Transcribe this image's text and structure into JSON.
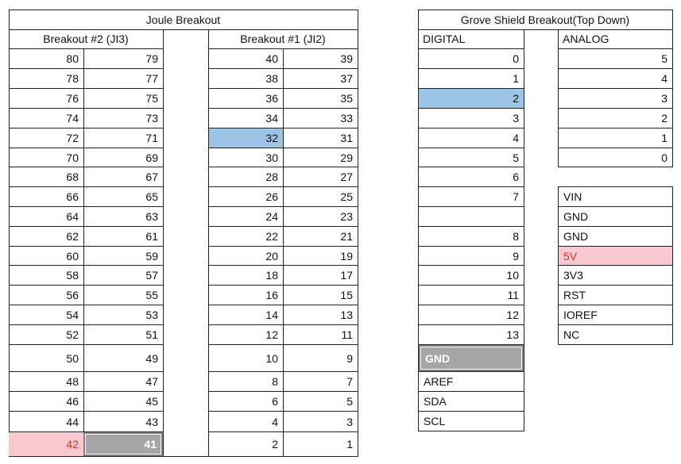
{
  "joule": {
    "title": "Joule Breakout",
    "b2_label": "Breakout #2 (JI3)",
    "b1_label": "Breakout #1 (JI2)",
    "rows": [
      [
        "80",
        "79",
        "40",
        "39"
      ],
      [
        "78",
        "77",
        "38",
        "37"
      ],
      [
        "76",
        "75",
        "36",
        "35"
      ],
      [
        "74",
        "73",
        "34",
        "33"
      ],
      [
        "72",
        "71",
        "32",
        "31"
      ],
      [
        "70",
        "69",
        "30",
        "29"
      ],
      [
        "68",
        "67",
        "28",
        "27"
      ],
      [
        "66",
        "65",
        "26",
        "25"
      ],
      [
        "64",
        "63",
        "24",
        "23"
      ],
      [
        "62",
        "61",
        "22",
        "21"
      ],
      [
        "60",
        "59",
        "20",
        "19"
      ],
      [
        "58",
        "57",
        "18",
        "17"
      ],
      [
        "56",
        "55",
        "16",
        "15"
      ],
      [
        "54",
        "53",
        "14",
        "13"
      ],
      [
        "52",
        "51",
        "12",
        "11"
      ],
      [
        "50",
        "49",
        "10",
        "9"
      ],
      [
        "48",
        "47",
        "8",
        "7"
      ],
      [
        "46",
        "45",
        "6",
        "5"
      ],
      [
        "44",
        "43",
        "4",
        "3"
      ],
      [
        "42",
        "41",
        "2",
        "1"
      ]
    ]
  },
  "grove": {
    "title": "Grove Shield Breakout(Top Down)",
    "digital_label": "DIGITAL",
    "analog_label": "ANALOG",
    "digital": [
      "0",
      "1",
      "2",
      "3",
      "4",
      "5",
      "6",
      "7",
      "",
      "8",
      "9",
      "10",
      "11",
      "12",
      "13"
    ],
    "digital_extra": [
      "GND",
      "AREF",
      "SDA",
      "SCL"
    ],
    "analog": [
      "5",
      "4",
      "3",
      "2",
      "1",
      "0"
    ],
    "power": [
      "VIN",
      "GND",
      "GND",
      "5V",
      "3V3",
      "RST",
      "IOREF",
      "NC"
    ]
  },
  "colors": {
    "blue_highlight": "#9dc3e6",
    "pink_highlight": "#f8c9cf",
    "gray_highlight": "#a6a6a6"
  }
}
